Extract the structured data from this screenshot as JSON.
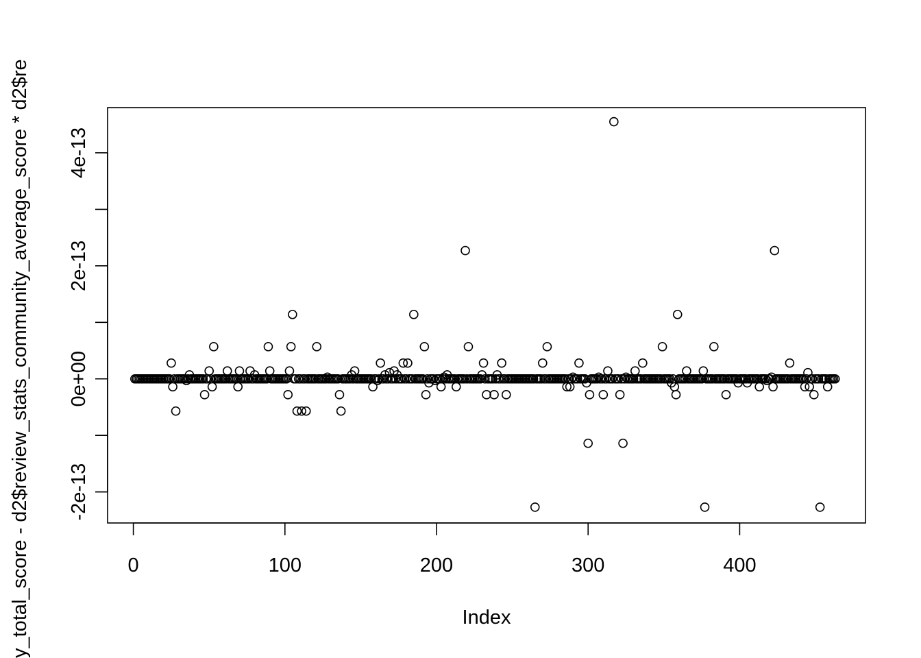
{
  "chart_data": {
    "type": "scatter",
    "title": "",
    "xlabel": "Index",
    "ylabel": "y_total_score - d2$review_stats_community_average_score * d2$re",
    "xlim": [
      -17,
      483
    ],
    "ylim": [
      -2.55e-13,
      4.8e-13
    ],
    "x_ticks": [
      {
        "value": 0,
        "label": "0"
      },
      {
        "value": 100,
        "label": "100"
      },
      {
        "value": 200,
        "label": "200"
      },
      {
        "value": 300,
        "label": "300"
      },
      {
        "value": 400,
        "label": "400"
      }
    ],
    "y_ticks": [
      {
        "value": -2e-13,
        "label": "-2e-13"
      },
      {
        "value": -1e-13,
        "label": ""
      },
      {
        "value": 0,
        "label": "0e+00"
      },
      {
        "value": 1e-13,
        "label": ""
      },
      {
        "value": 2e-13,
        "label": "2e-13"
      },
      {
        "value": 3e-13,
        "label": ""
      },
      {
        "value": 4e-13,
        "label": "4e-13"
      }
    ],
    "n_points": 463,
    "baseline_value": 0,
    "points": [
      [
        25,
        2.8e-14
      ],
      [
        26,
        -1.4e-14
      ],
      [
        28,
        -5.7e-14
      ],
      [
        35,
        -3e-15
      ],
      [
        37,
        7e-15
      ],
      [
        47,
        -2.8e-14
      ],
      [
        50,
        1.4e-14
      ],
      [
        52,
        -1.4e-14
      ],
      [
        53,
        5.7e-14
      ],
      [
        62,
        1.4e-14
      ],
      [
        69,
        -1.4e-14
      ],
      [
        70,
        1.4e-14
      ],
      [
        77,
        1.4e-14
      ],
      [
        80,
        7e-15
      ],
      [
        89,
        5.7e-14
      ],
      [
        90,
        1.4e-14
      ],
      [
        102,
        -2.8e-14
      ],
      [
        103,
        1.4e-14
      ],
      [
        104,
        5.7e-14
      ],
      [
        105,
        1.14e-13
      ],
      [
        108,
        -5.7e-14
      ],
      [
        111,
        -5.7e-14
      ],
      [
        114,
        -5.7e-14
      ],
      [
        121,
        5.7e-14
      ],
      [
        128,
        3e-15
      ],
      [
        136,
        -2.8e-14
      ],
      [
        137,
        -5.7e-14
      ],
      [
        144,
        7e-15
      ],
      [
        146,
        1.4e-14
      ],
      [
        158,
        -1.4e-14
      ],
      [
        161,
        -3e-15
      ],
      [
        163,
        2.8e-14
      ],
      [
        166,
        7e-15
      ],
      [
        169,
        1.1e-14
      ],
      [
        172,
        1.4e-14
      ],
      [
        174,
        7e-15
      ],
      [
        178,
        2.8e-14
      ],
      [
        181,
        2.8e-14
      ],
      [
        185,
        1.14e-13
      ],
      [
        192,
        5.7e-14
      ],
      [
        193,
        -2.8e-14
      ],
      [
        195,
        -7e-15
      ],
      [
        199,
        -3e-15
      ],
      [
        203,
        -1.4e-14
      ],
      [
        205,
        3e-15
      ],
      [
        207,
        7e-15
      ],
      [
        213,
        -1.4e-14
      ],
      [
        219,
        2.27e-13
      ],
      [
        221,
        5.7e-14
      ],
      [
        230,
        7e-15
      ],
      [
        231,
        2.8e-14
      ],
      [
        233,
        -2.8e-14
      ],
      [
        238,
        -2.8e-14
      ],
      [
        240,
        7e-15
      ],
      [
        243,
        2.8e-14
      ],
      [
        246,
        -2.8e-14
      ],
      [
        265,
        -2.27e-13
      ],
      [
        270,
        2.8e-14
      ],
      [
        273,
        5.7e-14
      ],
      [
        286,
        -1.4e-14
      ],
      [
        288,
        -1.4e-14
      ],
      [
        290,
        3e-15
      ],
      [
        294,
        2.8e-14
      ],
      [
        299,
        -7e-15
      ],
      [
        300,
        -1.14e-13
      ],
      [
        301,
        -2.8e-14
      ],
      [
        307,
        3e-15
      ],
      [
        310,
        -2.8e-14
      ],
      [
        313,
        1.4e-14
      ],
      [
        317,
        4.55e-13
      ],
      [
        321,
        -2.8e-14
      ],
      [
        323,
        -1.14e-13
      ],
      [
        325,
        3e-15
      ],
      [
        331,
        1.4e-14
      ],
      [
        336,
        2.8e-14
      ],
      [
        349,
        5.7e-14
      ],
      [
        355,
        -7e-15
      ],
      [
        357,
        -1.4e-14
      ],
      [
        358,
        -2.8e-14
      ],
      [
        359,
        1.14e-13
      ],
      [
        365,
        1.4e-14
      ],
      [
        376,
        1.4e-14
      ],
      [
        377,
        -2.27e-13
      ],
      [
        383,
        5.7e-14
      ],
      [
        391,
        -2.8e-14
      ],
      [
        399,
        -7e-15
      ],
      [
        405,
        -7e-15
      ],
      [
        413,
        -1.4e-14
      ],
      [
        418,
        -3e-15
      ],
      [
        421,
        3e-15
      ],
      [
        422,
        -1.4e-14
      ],
      [
        423,
        2.27e-13
      ],
      [
        433,
        2.8e-14
      ],
      [
        443,
        -1.4e-14
      ],
      [
        445,
        1.1e-14
      ],
      [
        446,
        -1.4e-14
      ],
      [
        449,
        -2.8e-14
      ],
      [
        453,
        -2.27e-13
      ],
      [
        458,
        -1.4e-14
      ],
      [
        462,
        0
      ]
    ]
  }
}
